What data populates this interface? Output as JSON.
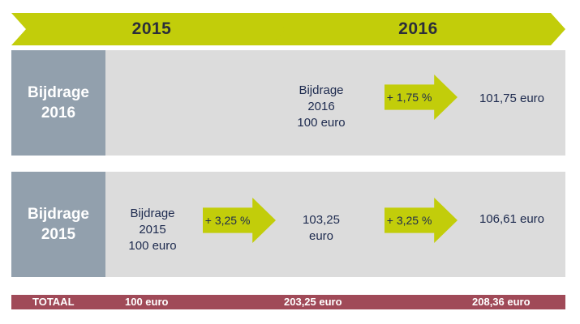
{
  "header": {
    "year_2015": "2015",
    "year_2016": "2016"
  },
  "rows": {
    "bijdrage_2016": {
      "label": "Bijdrage\n2016",
      "start_text": "Bijdrage\n2016\n100 euro",
      "arrow_label": "+ 1,75 %",
      "result": "101,75 euro"
    },
    "bijdrage_2015": {
      "label": "Bijdrage\n2015",
      "start_text": "Bijdrage\n2015\n100 euro",
      "arrow1_label": "+ 3,25 %",
      "mid_value": "103,25\neuro",
      "arrow2_label": "+ 3,25 %",
      "result": "106,61 euro"
    }
  },
  "total": {
    "label": "TOTAAL",
    "col_2015": "100 euro",
    "col_mid": "203,25 euro",
    "col_end": "208,36 euro"
  },
  "colors": {
    "accent_green": "#c2cd0a",
    "label_grey_blue": "#92a0ad",
    "row_background": "#dcdcdc",
    "total_bar": "#a04a58",
    "text_navy": "#1d2a4e"
  }
}
